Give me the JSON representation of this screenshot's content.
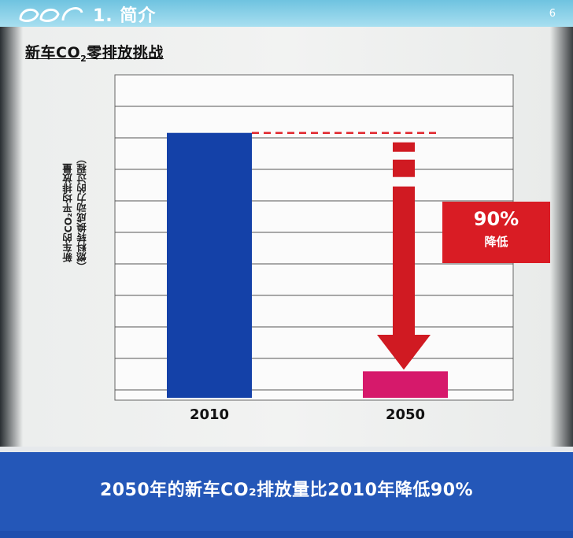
{
  "header": {
    "section_title": "1. 简介",
    "page_number": "6"
  },
  "slide": {
    "heading_prefix": "新车CO",
    "heading_sub": "2",
    "heading_suffix": "零排放挑战",
    "y_axis_line1": "新车的CO₂平均排放量",
    "y_axis_line2": "（燃料转换成动力的过程）",
    "callout_value": "90%",
    "callout_label": "降低",
    "banner_text": "2050年的新车CO₂排放量比2010年降低90%"
  },
  "colors": {
    "bar_2010": "#1441a8",
    "bar_2050": "#d6196b",
    "arrow": "#d01a22",
    "dashed_line": "#e0262d",
    "banner": "#2457b8"
  },
  "chart_data": {
    "type": "bar",
    "categories": [
      "2010",
      "2050"
    ],
    "values": [
      100,
      10
    ],
    "ylim": [
      0,
      113
    ],
    "grid": true,
    "annotations": [
      "90%",
      "降低"
    ]
  }
}
